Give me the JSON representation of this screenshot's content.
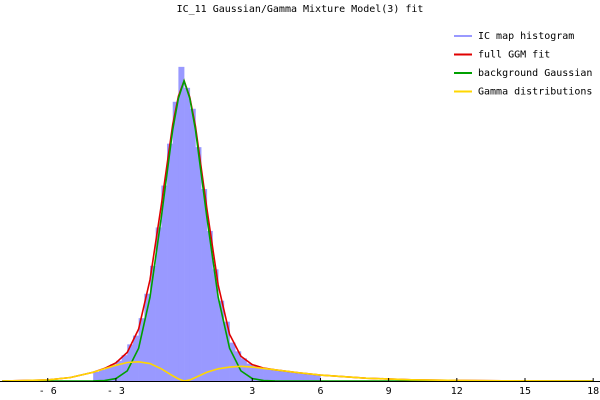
{
  "chart_data": {
    "type": "histogram_fit",
    "title": "IC_11 Gaussian/Gamma Mixture Model(3) fit",
    "xlim": [
      -8.1,
      18.3
    ],
    "ylim": [
      0,
      104
    ],
    "xticks": [
      {
        "value": -6,
        "label": "- 6"
      },
      {
        "value": -3,
        "label": "- 3"
      },
      3,
      6,
      9,
      12,
      15,
      18
    ],
    "histogram": {
      "name": "IC map histogram",
      "color": "#9999ff",
      "bins": [
        -4,
        -3.75,
        -3.5,
        -3.25,
        -3,
        -2.75,
        -2.5,
        -2.25,
        -2,
        -1.75,
        -1.5,
        -1.25,
        -1,
        -0.75,
        -0.5,
        -0.25,
        0,
        0.25,
        0.5,
        0.75,
        1,
        1.25,
        1.5,
        1.75,
        2,
        2.25,
        2.5,
        2.75,
        3,
        3.25,
        3.5,
        3.75,
        4,
        4.25,
        4.5,
        4.75,
        5,
        5.25,
        5.5,
        5.75,
        6
      ],
      "values": [
        2.6,
        3.2,
        3.9,
        4.8,
        5.8,
        7.4,
        10.5,
        13,
        18,
        25,
        33,
        44,
        56,
        68,
        80,
        90,
        84,
        78,
        67,
        55,
        43,
        32,
        23,
        17,
        11,
        8.5,
        6.5,
        5,
        4.3,
        3.8,
        3.4,
        3.2,
        3,
        2.8,
        2.6,
        2.4,
        2.2,
        2,
        1.9,
        1.7
      ]
    },
    "x": [
      -8,
      -6,
      -5,
      -4,
      -3.5,
      -3,
      -2.5,
      -2,
      -1.5,
      -1,
      -0.5,
      -0.25,
      0,
      0.25,
      0.5,
      1,
      1.5,
      2,
      2.5,
      3,
      3.5,
      4,
      5,
      6,
      8,
      10,
      12,
      14,
      16,
      18
    ],
    "series": [
      {
        "name": "full GGM fit",
        "color": "#e00000",
        "values": [
          0,
          0.3,
          1,
          2.5,
          3.6,
          5.2,
          8.2,
          14.9,
          29,
          50.5,
          73.5,
          81.6,
          86,
          81.3,
          73,
          49.5,
          27.5,
          13.4,
          7.1,
          4.7,
          3.7,
          3.2,
          2.4,
          1.7,
          0.8,
          0.35,
          0.15,
          0.05,
          0.02,
          0
        ]
      },
      {
        "name": "background Gaussian",
        "color": "#00a000",
        "values": [
          0,
          0,
          0,
          0.02,
          0.13,
          0.7,
          2.9,
          9.4,
          24,
          47,
          72,
          81,
          86,
          81,
          72,
          47,
          24,
          9.4,
          2.9,
          0.7,
          0.13,
          0.02,
          0,
          0,
          0,
          0,
          0,
          0,
          0,
          0
        ]
      },
      {
        "name": "Gamma distributions",
        "color": "#ffd700",
        "values": [
          0,
          0.3,
          1,
          2.5,
          3.5,
          4.5,
          5.3,
          5.5,
          5,
          3.5,
          1.5,
          0.6,
          0,
          null,
          null,
          null,
          null,
          null,
          null,
          null,
          null,
          null,
          null,
          null,
          null,
          null,
          null,
          null,
          null,
          null
        ]
      },
      {
        "name": null,
        "color": "#ffd700",
        "values": [
          null,
          null,
          null,
          null,
          null,
          null,
          null,
          null,
          null,
          null,
          null,
          null,
          0,
          0.3,
          1,
          2.5,
          3.5,
          4,
          4.2,
          4,
          3.6,
          3.2,
          2.4,
          1.7,
          0.8,
          0.35,
          0.15,
          0.05,
          0.02,
          0
        ]
      }
    ]
  }
}
